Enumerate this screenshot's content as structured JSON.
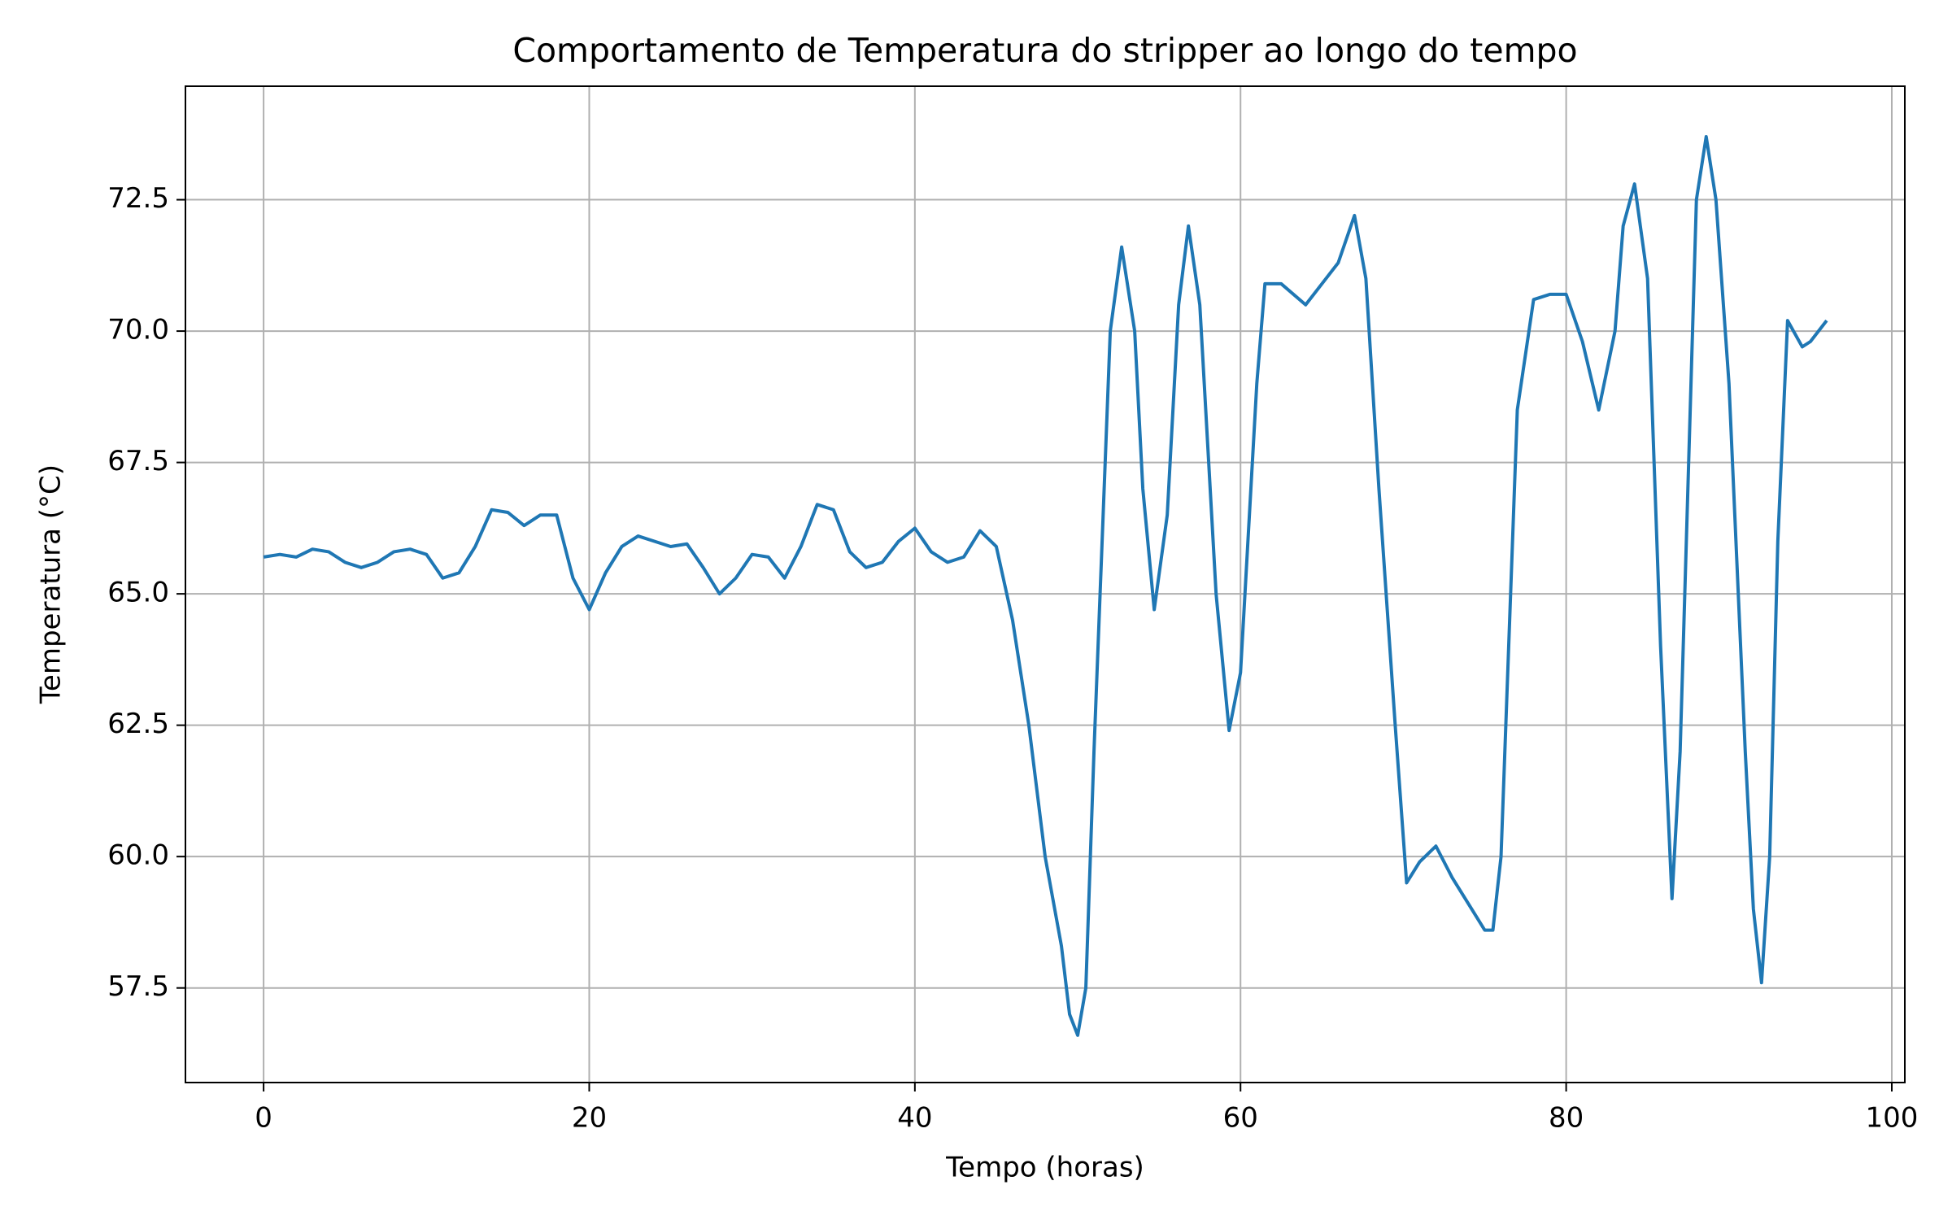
{
  "chart_data": {
    "type": "line",
    "title": "Comportamento de Temperatura do stripper ao longo do tempo",
    "x_label": "Tempo (horas)",
    "y_label": "Temperatura (°C)",
    "x": [
      0,
      1,
      2,
      3,
      4,
      5,
      6,
      7,
      8,
      9,
      10,
      11,
      12,
      13,
      14,
      15,
      16,
      17,
      18,
      19,
      20,
      21,
      22,
      23,
      24,
      25,
      26,
      27,
      28,
      29,
      30,
      31,
      32,
      33,
      34,
      35,
      36,
      37,
      38,
      39,
      40,
      41,
      42,
      43,
      44,
      45,
      46,
      47,
      48,
      49,
      49.5,
      50,
      50.5,
      51,
      52,
      52.7,
      53.5,
      54,
      54.7,
      55.5,
      56.2,
      56.8,
      57.5,
      58.5,
      59.3,
      60,
      61,
      61.5,
      62.5,
      64,
      65,
      66,
      67,
      67.7,
      68.5,
      69.5,
      70.2,
      71,
      72,
      73,
      74,
      75,
      75.5,
      76,
      77,
      78,
      79,
      80,
      81,
      82,
      83,
      83.5,
      84.2,
      85,
      85.8,
      86.5,
      87,
      88,
      88.6,
      89.2,
      90,
      91,
      91.5,
      92,
      92.5,
      93,
      93.6,
      94.5,
      95,
      96
    ],
    "series": [
      {
        "name": "Temperatura",
        "color": "#1f77b4",
        "values": [
          65.7,
          65.75,
          65.7,
          65.85,
          65.8,
          65.6,
          65.5,
          65.6,
          65.8,
          65.85,
          65.75,
          65.3,
          65.4,
          65.9,
          66.6,
          66.55,
          66.3,
          66.5,
          66.5,
          65.3,
          64.7,
          65.4,
          65.9,
          66.1,
          66.0,
          65.9,
          65.95,
          65.5,
          65.0,
          65.3,
          65.75,
          65.7,
          65.3,
          65.9,
          66.7,
          66.6,
          65.8,
          65.5,
          65.6,
          66.0,
          66.25,
          65.8,
          65.6,
          65.7,
          66.2,
          65.9,
          64.5,
          62.5,
          60.0,
          58.3,
          57.0,
          56.6,
          57.5,
          62.0,
          70.0,
          71.6,
          70.0,
          67.0,
          64.7,
          66.5,
          70.5,
          72.0,
          70.5,
          65.0,
          62.4,
          63.5,
          69.0,
          70.9,
          70.9,
          70.5,
          70.9,
          71.3,
          72.2,
          71.0,
          67.0,
          62.5,
          59.5,
          59.9,
          60.2,
          59.6,
          59.1,
          58.6,
          58.6,
          60.0,
          68.5,
          70.6,
          70.7,
          70.7,
          69.8,
          68.5,
          70.0,
          72.0,
          72.8,
          71.0,
          64.0,
          59.2,
          62.0,
          72.5,
          73.7,
          72.5,
          69.0,
          62.0,
          59.0,
          57.6,
          60.0,
          66.0,
          70.2,
          69.7,
          69.8,
          70.2
        ]
      }
    ],
    "xlim": [
      -4.8,
      100.8
    ],
    "ylim": [
      55.7,
      74.66
    ],
    "xticks": [
      0,
      20,
      40,
      60,
      80,
      100
    ],
    "yticks": [
      57.5,
      {
        "value": 60,
        "label": "60.0"
      },
      62.5,
      {
        "value": 65,
        "label": "65.0"
      },
      67.5,
      {
        "value": 70,
        "label": "70.0"
      },
      72.5
    ],
    "grid": true
  }
}
